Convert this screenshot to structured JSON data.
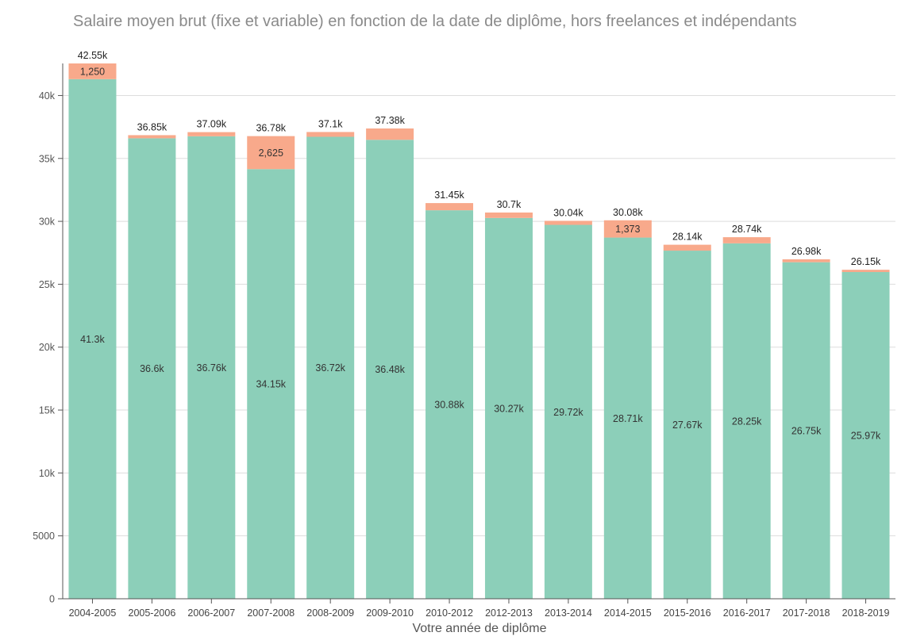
{
  "chart_data": {
    "type": "bar",
    "stacked": true,
    "title": "Salaire moyen brut (fixe et variable) en fonction de la date de diplôme, hors freelances et indépendants",
    "xlabel": "Votre année de diplôme",
    "ylabel": "",
    "ylim": [
      0,
      42550
    ],
    "y_ticks": [
      0,
      5000,
      10000,
      15000,
      20000,
      25000,
      30000,
      35000,
      40000
    ],
    "y_tick_labels": [
      "0",
      "5000",
      "10k",
      "15k",
      "20k",
      "25k",
      "30k",
      "35k",
      "40k"
    ],
    "grid": true,
    "categories": [
      "2004-2005",
      "2005-2006",
      "2006-2007",
      "2007-2008",
      "2008-2009",
      "2009-2010",
      "2010-2012",
      "2012-2013",
      "2013-2014",
      "2014-2015",
      "2015-2016",
      "2016-2017",
      "2017-2018",
      "2018-2019"
    ],
    "series": [
      {
        "color": "#8ccfb9",
        "values": [
          41300,
          36600,
          36760,
          34150,
          36720,
          36480,
          30880,
          30270,
          29720,
          28710,
          27670,
          28250,
          26750,
          25970
        ],
        "labels": [
          "41.3k",
          "36.6k",
          "36.76k",
          "34.15k",
          "36.72k",
          "36.48k",
          "30.88k",
          "30.27k",
          "29.72k",
          "28.71k",
          "27.67k",
          "28.25k",
          "26.75k",
          "25.97k"
        ]
      },
      {
        "color": "#f8a98b",
        "values": [
          1250,
          250,
          330,
          2625,
          380,
          900,
          570,
          430,
          320,
          1373,
          470,
          490,
          230,
          180
        ],
        "labels": [
          "1,250",
          "",
          "",
          "2,625",
          "",
          "",
          "",
          "",
          "",
          "1,373",
          "",
          "",
          "",
          ""
        ]
      }
    ],
    "totals": [
      42550,
      36850,
      37090,
      36780,
      37100,
      37380,
      31450,
      30700,
      30040,
      30080,
      28140,
      28740,
      26980,
      26150
    ],
    "total_labels": [
      "42.55k",
      "36.85k",
      "37.09k",
      "36.78k",
      "37.1k",
      "37.38k",
      "31.45k",
      "30.7k",
      "30.04k",
      "30.08k",
      "28.14k",
      "28.74k",
      "26.98k",
      "26.15k"
    ]
  }
}
